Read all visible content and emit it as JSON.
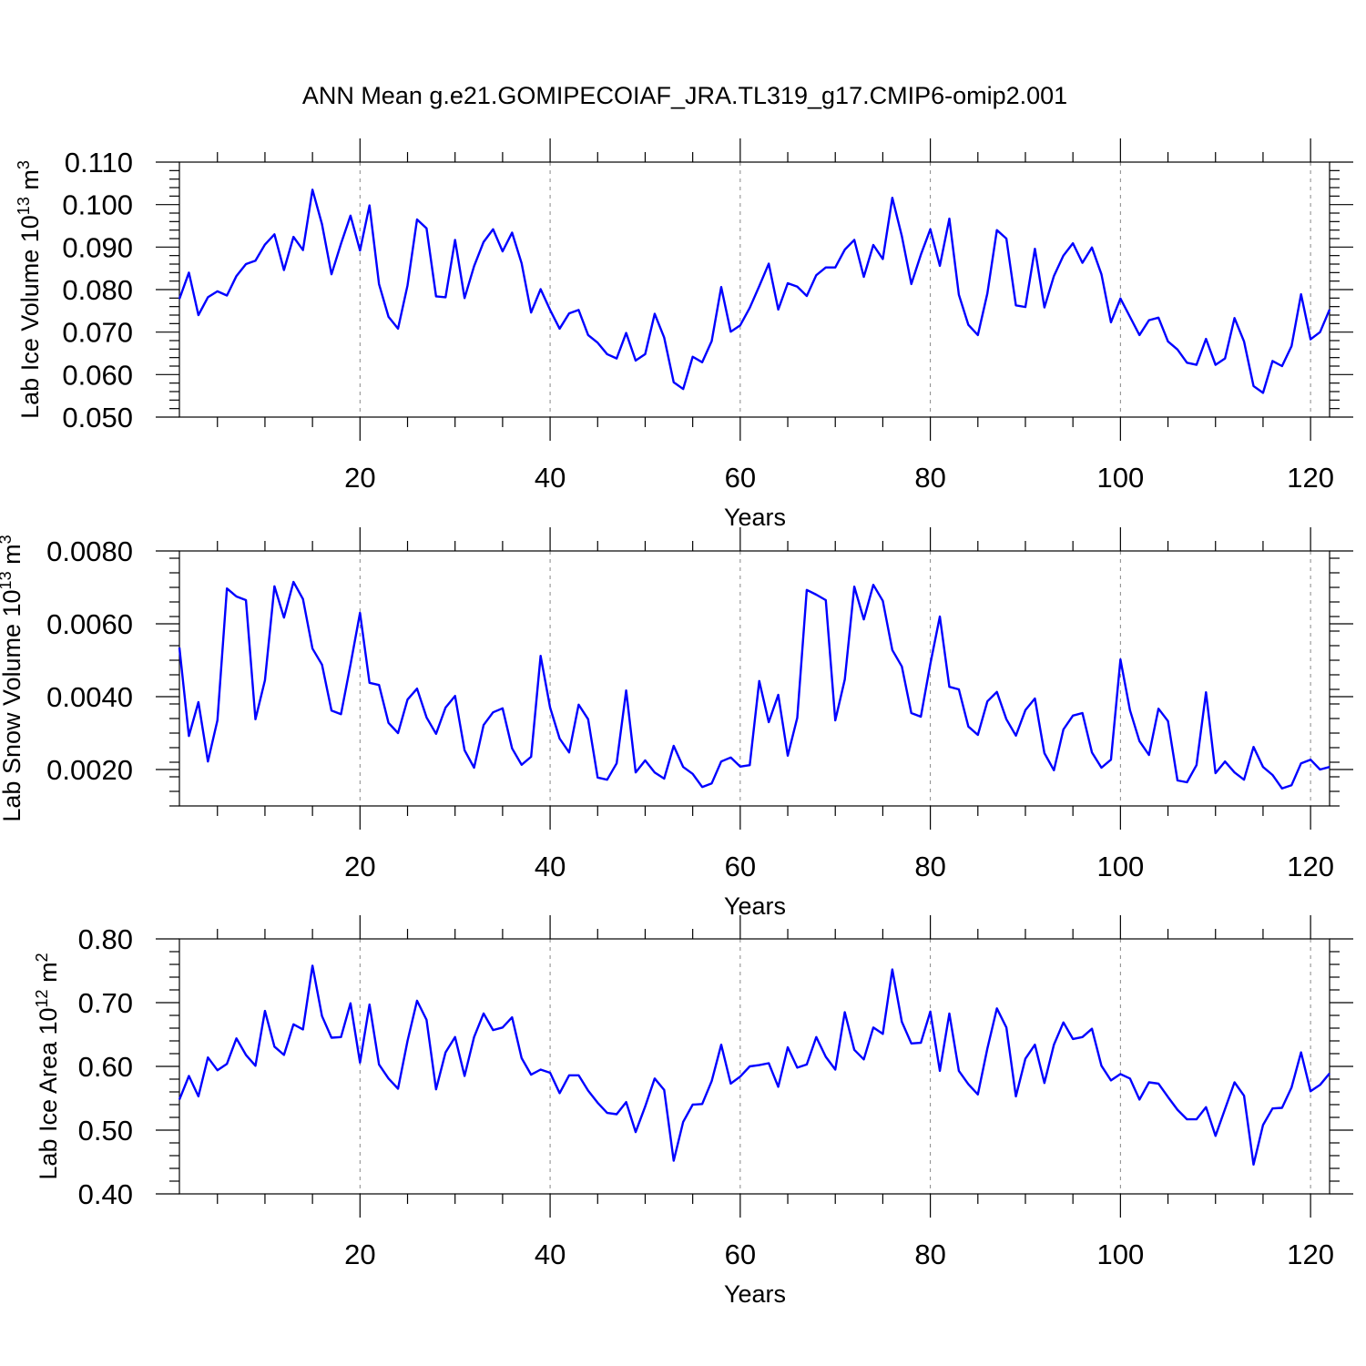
{
  "title": "ANN Mean g.e21.GOMIPECOIAF_JRA.TL319_g17.CMIP6-omip2.001",
  "colors": {
    "line": "#0000ff",
    "grid": "#888888",
    "axis": "#000000"
  },
  "chart_data": [
    {
      "type": "line",
      "xlabel": "Years",
      "ylabel_prefix": "Lab Ice Volume 10",
      "ylabel_exp": "13",
      "ylabel_unit": " m",
      "ylabel_unit_exp": "3",
      "xlim": [
        1,
        122
      ],
      "ylim": [
        0.05,
        0.11
      ],
      "xticks": [
        20,
        40,
        60,
        80,
        100,
        120
      ],
      "xtick_labels": [
        "20",
        "40",
        "60",
        "80",
        "100",
        "120"
      ],
      "yticks": [
        0.05,
        0.06,
        0.07,
        0.08,
        0.09,
        0.1,
        0.11
      ],
      "ytick_labels": [
        "0.050",
        "0.060",
        "0.070",
        "0.080",
        "0.090",
        "0.100",
        "0.110"
      ],
      "grid": "vertical dashed at x ticks",
      "series": [
        {
          "color": "#0000ff",
          "values": [
            0.0778,
            0.084,
            0.074,
            0.0782,
            0.0796,
            0.0786,
            0.0832,
            0.086,
            0.0868,
            0.0906,
            0.093,
            0.0846,
            0.0924,
            0.0893,
            0.1035,
            0.0954,
            0.0836,
            0.0908,
            0.0974,
            0.0892,
            0.0998,
            0.0813,
            0.0736,
            0.0708,
            0.081,
            0.0965,
            0.0944,
            0.0784,
            0.0782,
            0.0917,
            0.078,
            0.0855,
            0.0912,
            0.0942,
            0.089,
            0.0934,
            0.0862,
            0.0746,
            0.0801,
            0.0752,
            0.0708,
            0.0744,
            0.0752,
            0.0693,
            0.0675,
            0.0648,
            0.0638,
            0.0698,
            0.0633,
            0.0648,
            0.0743,
            0.0687,
            0.0582,
            0.0566,
            0.0642,
            0.0629,
            0.0679,
            0.0806,
            0.0701,
            0.0716,
            0.0757,
            0.0808,
            0.0861,
            0.0753,
            0.0815,
            0.0807,
            0.0785,
            0.0834,
            0.0852,
            0.0852,
            0.0894,
            0.0917,
            0.083,
            0.0905,
            0.0872,
            0.1016,
            0.0926,
            0.0813,
            0.0882,
            0.0942,
            0.0856,
            0.0967,
            0.0788,
            0.0717,
            0.0693,
            0.0791,
            0.094,
            0.092,
            0.0763,
            0.0759,
            0.0896,
            0.0758,
            0.0832,
            0.088,
            0.0909,
            0.0863,
            0.0899,
            0.0836,
            0.0723,
            0.0779,
            0.0736,
            0.0693,
            0.0728,
            0.0734,
            0.0678,
            0.0659,
            0.0628,
            0.0623,
            0.0684,
            0.0623,
            0.0638,
            0.0733,
            0.0678,
            0.0573,
            0.0557,
            0.0632,
            0.062,
            0.0667,
            0.0789,
            0.0683,
            0.07,
            0.0753
          ]
        }
      ]
    },
    {
      "type": "line",
      "xlabel": "Years",
      "ylabel_prefix": "Lab Snow Volume 10",
      "ylabel_exp": "13",
      "ylabel_unit": " m",
      "ylabel_unit_exp": "3",
      "xlim": [
        1,
        122
      ],
      "ylim": [
        0.001,
        0.008
      ],
      "xticks": [
        20,
        40,
        60,
        80,
        100,
        120
      ],
      "xtick_labels": [
        "20",
        "40",
        "60",
        "80",
        "100",
        "120"
      ],
      "yticks": [
        0.002,
        0.004,
        0.006,
        0.008
      ],
      "ytick_labels": [
        "0.0020",
        "0.0040",
        "0.0060",
        "0.0080"
      ],
      "grid": "vertical dashed at x ticks",
      "series": [
        {
          "color": "#0000ff",
          "values": [
            0.00535,
            0.00292,
            0.00385,
            0.00222,
            0.00335,
            0.00697,
            0.00675,
            0.00665,
            0.00338,
            0.00445,
            0.00703,
            0.00617,
            0.00715,
            0.00668,
            0.00532,
            0.00488,
            0.00362,
            0.00352,
            0.00488,
            0.0063,
            0.00438,
            0.00432,
            0.00328,
            0.003,
            0.00392,
            0.00422,
            0.00343,
            0.00298,
            0.0037,
            0.00402,
            0.00253,
            0.00205,
            0.00322,
            0.00357,
            0.00368,
            0.00258,
            0.00213,
            0.00235,
            0.00512,
            0.0037,
            0.00285,
            0.00247,
            0.00378,
            0.00338,
            0.00178,
            0.00172,
            0.00217,
            0.00417,
            0.00192,
            0.00225,
            0.00192,
            0.00175,
            0.00265,
            0.00207,
            0.00188,
            0.00152,
            0.00162,
            0.00222,
            0.00233,
            0.00208,
            0.00212,
            0.00443,
            0.0033,
            0.00405,
            0.00238,
            0.00342,
            0.00693,
            0.0068,
            0.00665,
            0.00335,
            0.00447,
            0.00702,
            0.00612,
            0.00707,
            0.00663,
            0.00528,
            0.00483,
            0.00355,
            0.00345,
            0.0049,
            0.0062,
            0.00427,
            0.0042,
            0.00318,
            0.00295,
            0.00387,
            0.00413,
            0.00338,
            0.00293,
            0.00363,
            0.00395,
            0.00245,
            0.00198,
            0.0031,
            0.00348,
            0.00355,
            0.00247,
            0.00205,
            0.00227,
            0.00502,
            0.00363,
            0.00278,
            0.0024,
            0.00367,
            0.00333,
            0.0017,
            0.00165,
            0.00212,
            0.00412,
            0.0019,
            0.00222,
            0.00192,
            0.00172,
            0.00262,
            0.00207,
            0.00185,
            0.00148,
            0.00157,
            0.00217,
            0.00227,
            0.002,
            0.00207
          ]
        }
      ]
    },
    {
      "type": "line",
      "xlabel": "Years",
      "ylabel_prefix": "Lab Ice Area 10",
      "ylabel_exp": "12",
      "ylabel_unit": " m",
      "ylabel_unit_exp": "2",
      "xlim": [
        1,
        122
      ],
      "ylim": [
        0.4,
        0.8
      ],
      "xticks": [
        20,
        40,
        60,
        80,
        100,
        120
      ],
      "xtick_labels": [
        "20",
        "40",
        "60",
        "80",
        "100",
        "120"
      ],
      "yticks": [
        0.4,
        0.5,
        0.6,
        0.7,
        0.8
      ],
      "ytick_labels": [
        "0.40",
        "0.50",
        "0.60",
        "0.70",
        "0.80"
      ],
      "grid": "vertical dashed at x ticks",
      "series": [
        {
          "color": "#0000ff",
          "values": [
            0.548,
            0.585,
            0.553,
            0.614,
            0.594,
            0.604,
            0.644,
            0.618,
            0.601,
            0.687,
            0.631,
            0.618,
            0.666,
            0.658,
            0.758,
            0.679,
            0.645,
            0.646,
            0.699,
            0.606,
            0.697,
            0.603,
            0.581,
            0.565,
            0.64,
            0.703,
            0.673,
            0.564,
            0.622,
            0.646,
            0.585,
            0.646,
            0.683,
            0.657,
            0.661,
            0.677,
            0.613,
            0.587,
            0.595,
            0.59,
            0.558,
            0.586,
            0.586,
            0.562,
            0.543,
            0.527,
            0.525,
            0.544,
            0.497,
            0.537,
            0.581,
            0.563,
            0.452,
            0.513,
            0.54,
            0.541,
            0.577,
            0.634,
            0.573,
            0.584,
            0.6,
            0.602,
            0.605,
            0.568,
            0.63,
            0.598,
            0.603,
            0.646,
            0.615,
            0.595,
            0.685,
            0.626,
            0.611,
            0.661,
            0.651,
            0.752,
            0.67,
            0.636,
            0.637,
            0.686,
            0.593,
            0.683,
            0.593,
            0.572,
            0.556,
            0.628,
            0.691,
            0.661,
            0.553,
            0.612,
            0.634,
            0.574,
            0.634,
            0.669,
            0.643,
            0.646,
            0.659,
            0.601,
            0.578,
            0.588,
            0.581,
            0.548,
            0.575,
            0.573,
            0.552,
            0.532,
            0.517,
            0.517,
            0.536,
            0.491,
            0.533,
            0.575,
            0.554,
            0.446,
            0.508,
            0.534,
            0.535,
            0.567,
            0.622,
            0.561,
            0.571,
            0.589
          ]
        }
      ]
    }
  ]
}
